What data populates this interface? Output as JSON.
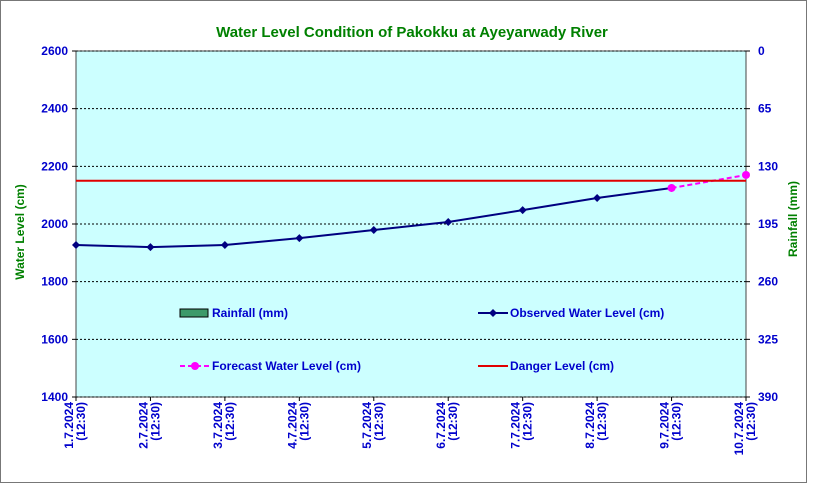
{
  "chart_data": {
    "type": "line",
    "title": "Water Level Condition of Pakokku at Ayeyarwady River",
    "y_label": "Water Level (cm)",
    "y2_label": "Rainfall (mm)",
    "categories": [
      "1.7.2024 (12:30)",
      "2.7.2024 (12:30)",
      "3.7.2024 (12:30)",
      "4.7.2024 (12:30)",
      "5.7.2024 (12:30)",
      "6.7.2024 (12:30)",
      "7.7.2024 (12:30)",
      "8.7.2024 (12:30)",
      "9.7.2024 (12:30)",
      "10.7.2024 (12:30)"
    ],
    "series": [
      {
        "name": "Rainfall (mm)",
        "color": "#3c9a6a",
        "axis": "y2",
        "kind": "bar",
        "values": [
          null,
          null,
          null,
          null,
          null,
          null,
          null,
          null,
          null,
          null
        ]
      },
      {
        "name": "Observed Water Level (cm)",
        "color": "#000080",
        "marker": "diamond",
        "values": [
          1927,
          1920,
          1927,
          1951,
          1979,
          2007,
          2048,
          2090,
          2125,
          null
        ]
      },
      {
        "name": "Forecast Water Level (cm)",
        "color": "#ff00ff",
        "marker": "circle",
        "dashed": true,
        "values": [
          null,
          null,
          null,
          null,
          null,
          null,
          null,
          null,
          2125,
          2170
        ]
      },
      {
        "name": "Danger Level (cm)",
        "color": "#e00000",
        "values": [
          2150,
          2150,
          2150,
          2150,
          2150,
          2150,
          2150,
          2150,
          2150,
          2150
        ]
      }
    ],
    "ylim": [
      1400,
      2600
    ],
    "yticks": [
      1400,
      1600,
      1800,
      2000,
      2200,
      2400,
      2600
    ],
    "y2lim": [
      390,
      0
    ],
    "y2ticks": [
      390,
      325,
      260,
      195,
      130,
      65,
      0
    ],
    "grid": true
  }
}
